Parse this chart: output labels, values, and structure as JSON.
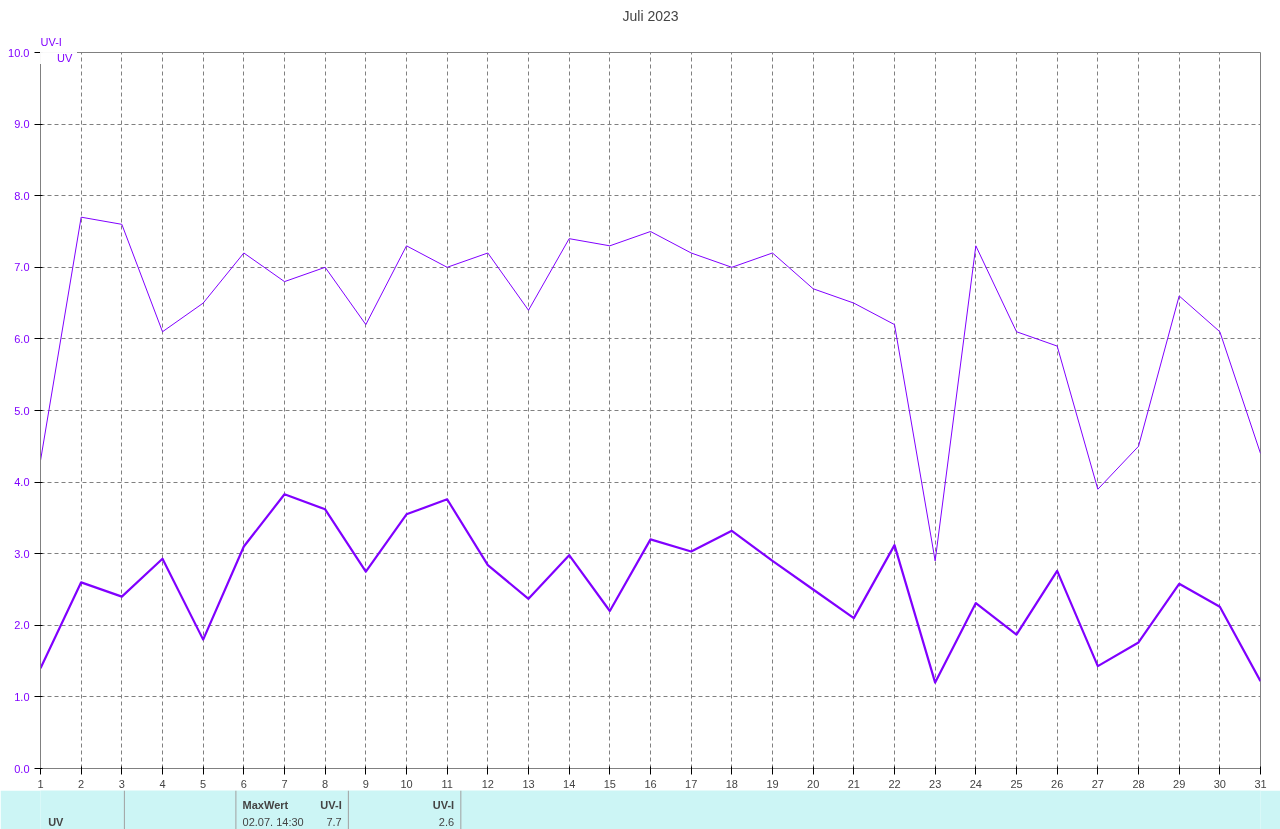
{
  "chart_data": {
    "type": "line",
    "title": "Juli 2023",
    "ylabel": "UV-I",
    "x": [
      1,
      2,
      3,
      4,
      5,
      6,
      7,
      8,
      9,
      10,
      11,
      12,
      13,
      14,
      15,
      16,
      17,
      18,
      19,
      20,
      21,
      22,
      23,
      24,
      25,
      26,
      27,
      28,
      29,
      30,
      31
    ],
    "series": [
      {
        "color": "#8000ff",
        "values": [
          4.3,
          7.7,
          7.6,
          6.1,
          6.5,
          7.2,
          6.8,
          7.0,
          6.2,
          7.3,
          7.0,
          7.2,
          6.4,
          7.4,
          7.3,
          7.5,
          7.2,
          7.0,
          7.2,
          6.7,
          6.5,
          6.2,
          2.9,
          7.3,
          6.1,
          5.9,
          3.9,
          4.5,
          6.6,
          6.1,
          4.4
        ]
      },
      {
        "name": "UV",
        "color": "#8000ff",
        "values": [
          1.4,
          2.6,
          2.4,
          2.93,
          1.8,
          3.1,
          3.83,
          3.62,
          2.75,
          3.55,
          3.76,
          2.84,
          2.37,
          2.98,
          2.2,
          3.2,
          3.03,
          3.32,
          2.9,
          2.5,
          2.1,
          3.12,
          1.2,
          2.31,
          1.87,
          2.76,
          1.43,
          1.76,
          2.58,
          2.26,
          1.22
        ]
      }
    ],
    "xlim": [
      1,
      31
    ],
    "xticks": [
      1,
      2,
      3,
      4,
      5,
      6,
      7,
      8,
      9,
      10,
      11,
      12,
      13,
      14,
      15,
      16,
      17,
      18,
      19,
      20,
      21,
      22,
      23,
      24,
      25,
      26,
      27,
      28,
      29,
      30,
      31
    ],
    "ylim": [
      0,
      10
    ],
    "yticks": [
      {
        "value": 0,
        "label": "0.0"
      },
      {
        "value": 1,
        "label": "1.0"
      },
      {
        "value": 2,
        "label": "2.0"
      },
      {
        "value": 3,
        "label": "3.0"
      },
      {
        "value": 4,
        "label": "4.0"
      },
      {
        "value": 5,
        "label": "5.0"
      },
      {
        "value": 6,
        "label": "6.0"
      },
      {
        "value": 7,
        "label": "7.0"
      },
      {
        "value": 8,
        "label": "8.0"
      },
      {
        "value": 9,
        "label": "9.0"
      },
      {
        "value": 10,
        "label": "10.0"
      }
    ],
    "grid": true,
    "legend": "top left",
    "line_style": "solid",
    "marker": "none",
    "annotations": [
      "UV",
      "MaxWert",
      "UV-I",
      "02.07.  14:30",
      "7.7",
      "UV-I",
      "2.6"
    ]
  }
}
